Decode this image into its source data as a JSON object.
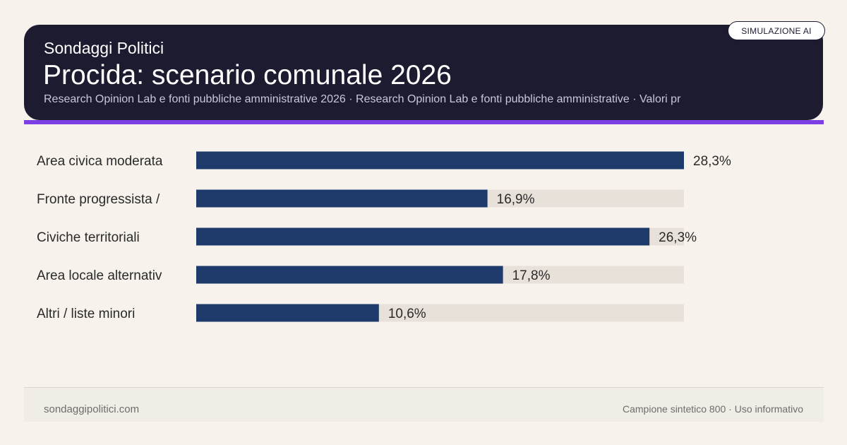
{
  "header": {
    "brand": "Sondaggi Politici",
    "title": "Procida: scenario comunale 2026",
    "subtitle": "Research Opinion Lab e fonti pubbliche amministrative 2026 · Research Opinion Lab e fonti pubbliche amministrative · Valori pr",
    "badge": "SIMULAZIONE AI"
  },
  "colors": {
    "bar": "#1e3a6a",
    "track": "#e8e1d9",
    "header_bg": "#1c1b30",
    "accent": "#7b3fe4"
  },
  "chart_data": {
    "type": "bar",
    "orientation": "horizontal",
    "categories": [
      "Area civica moderata",
      "Fronte progressista /",
      "Civiche territoriali",
      "Area locale alternativ",
      "Altri / liste minori"
    ],
    "values": [
      28.3,
      16.9,
      26.3,
      17.8,
      10.6
    ],
    "value_labels": [
      "28,3%",
      "16,9%",
      "26,3%",
      "17,8%",
      "10,6%"
    ],
    "xlim": [
      0,
      28.3
    ],
    "unit": "%"
  },
  "footer": {
    "left": "sondaggipolitici.com",
    "right": "Campione sintetico 800 · Uso informativo"
  }
}
